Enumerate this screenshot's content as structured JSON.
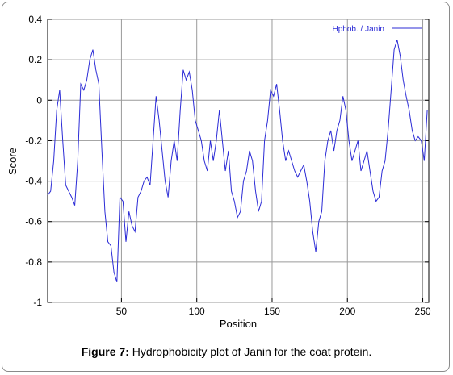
{
  "caption": {
    "label": "Figure 7:",
    "text": " Hydrophobicity plot of Janin for the coat protein."
  },
  "chart_data": {
    "type": "line",
    "xlabel": "Position",
    "ylabel": "Score",
    "xlim": [
      1,
      254
    ],
    "ylim": [
      -1,
      0.4
    ],
    "x_ticks": [
      50,
      100,
      150,
      200,
      250
    ],
    "y_ticks": [
      -1,
      -0.8,
      -0.6,
      -0.4,
      -0.2,
      0,
      0.2,
      0.4
    ],
    "grid": true,
    "legend_position": "top-right",
    "series_color": "#2b2bd6",
    "series": [
      {
        "name": "Hphob. / Janin",
        "x": [
          1,
          3,
          5,
          7,
          9,
          11,
          13,
          15,
          17,
          19,
          21,
          23,
          25,
          27,
          29,
          31,
          33,
          35,
          37,
          39,
          41,
          43,
          45,
          47,
          49,
          51,
          53,
          55,
          57,
          59,
          61,
          63,
          65,
          67,
          69,
          71,
          73,
          75,
          77,
          79,
          81,
          83,
          85,
          87,
          89,
          91,
          93,
          95,
          97,
          99,
          101,
          103,
          105,
          107,
          109,
          111,
          113,
          115,
          117,
          119,
          121,
          123,
          125,
          127,
          129,
          131,
          133,
          135,
          137,
          139,
          141,
          143,
          145,
          147,
          149,
          151,
          153,
          155,
          157,
          159,
          161,
          163,
          165,
          167,
          169,
          171,
          173,
          175,
          177,
          179,
          181,
          183,
          185,
          187,
          189,
          191,
          193,
          195,
          197,
          199,
          201,
          203,
          205,
          207,
          209,
          211,
          213,
          215,
          217,
          219,
          221,
          223,
          225,
          227,
          229,
          231,
          233,
          235,
          237,
          239,
          241,
          243,
          245,
          247,
          249,
          251,
          253
        ],
        "values": [
          -0.47,
          -0.45,
          -0.3,
          -0.05,
          0.05,
          -0.2,
          -0.42,
          -0.45,
          -0.48,
          -0.52,
          -0.3,
          0.08,
          0.05,
          0.1,
          0.2,
          0.25,
          0.15,
          0.08,
          -0.25,
          -0.55,
          -0.7,
          -0.72,
          -0.85,
          -0.9,
          -0.48,
          -0.5,
          -0.7,
          -0.55,
          -0.62,
          -0.65,
          -0.48,
          -0.45,
          -0.4,
          -0.38,
          -0.42,
          -0.2,
          0.02,
          -0.1,
          -0.25,
          -0.4,
          -0.48,
          -0.3,
          -0.2,
          -0.3,
          -0.05,
          0.15,
          0.1,
          0.14,
          0.05,
          -0.1,
          -0.15,
          -0.2,
          -0.3,
          -0.35,
          -0.2,
          -0.3,
          -0.2,
          -0.05,
          -0.2,
          -0.35,
          -0.25,
          -0.45,
          -0.5,
          -0.58,
          -0.55,
          -0.4,
          -0.35,
          -0.25,
          -0.3,
          -0.45,
          -0.55,
          -0.5,
          -0.2,
          -0.1,
          0.05,
          0.02,
          0.08,
          -0.05,
          -0.2,
          -0.3,
          -0.25,
          -0.3,
          -0.35,
          -0.38,
          -0.35,
          -0.32,
          -0.4,
          -0.5,
          -0.65,
          -0.75,
          -0.6,
          -0.55,
          -0.3,
          -0.2,
          -0.15,
          -0.25,
          -0.15,
          -0.1,
          0.02,
          -0.05,
          -0.2,
          -0.3,
          -0.25,
          -0.2,
          -0.35,
          -0.3,
          -0.25,
          -0.35,
          -0.45,
          -0.5,
          -0.48,
          -0.35,
          -0.3,
          -0.15,
          0.05,
          0.25,
          0.3,
          0.22,
          0.1,
          0.02,
          -0.05,
          -0.15,
          -0.2,
          -0.18,
          -0.2,
          -0.3,
          -0.05
        ]
      }
    ]
  }
}
